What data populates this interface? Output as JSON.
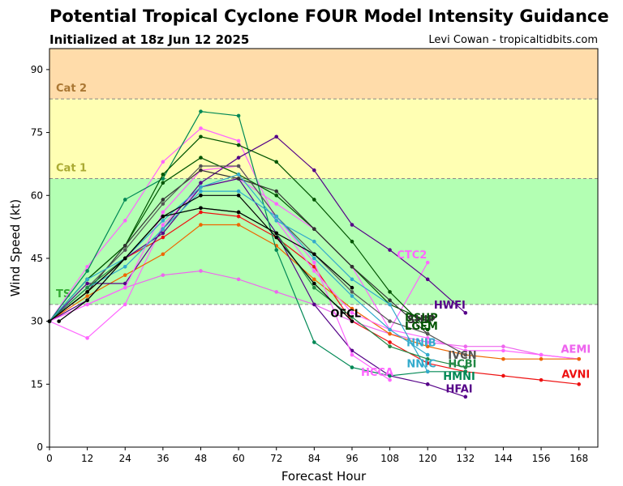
{
  "chart_data": {
    "type": "line",
    "title": "Potential Tropical Cyclone FOUR Model Intensity Guidance",
    "subtitle": "Initialized at 18z Jun 12 2025",
    "credit": "Levi Cowan - tropicaltidbits.com",
    "xlabel": "Forecast Hour",
    "ylabel": "Wind Speed (kt)",
    "xlim": [
      0,
      174
    ],
    "ylim": [
      0,
      95
    ],
    "xticks": [
      0,
      12,
      24,
      36,
      48,
      60,
      72,
      84,
      96,
      108,
      120,
      132,
      144,
      156,
      168
    ],
    "yticks": [
      0,
      15,
      30,
      45,
      60,
      75,
      90
    ],
    "bands": [
      {
        "label": "",
        "from": 0,
        "to": 34,
        "color": "#ffffff"
      },
      {
        "label": "TS",
        "from": 34,
        "to": 64,
        "color": "#b3ffb3",
        "label_color": "#33aa33"
      },
      {
        "label": "Cat 1",
        "from": 64,
        "to": 83,
        "color": "#ffffb3",
        "label_color": "#aaaa33"
      },
      {
        "label": "Cat 2",
        "from": 83,
        "to": 95,
        "color": "#ffdcaa",
        "label_color": "#aa7733"
      }
    ],
    "series": [
      {
        "name": "AEMI",
        "color": "#ee66ee",
        "x": [
          0,
          12,
          24,
          36,
          48,
          60,
          72,
          84,
          96,
          108,
          120,
          132,
          144,
          156,
          168
        ],
        "y": [
          30,
          34,
          38,
          41,
          42,
          40,
          37,
          34,
          30,
          27,
          25,
          24,
          24,
          22,
          21
        ]
      },
      {
        "name": "AEMI",
        "color": "#ff66ff",
        "x": [
          0,
          12,
          24,
          36,
          48,
          60,
          72,
          84,
          96,
          108,
          120,
          132,
          144,
          156,
          168
        ],
        "y": [
          30,
          26,
          34,
          53,
          62,
          64,
          58,
          52,
          43,
          28,
          26,
          23,
          23,
          22,
          21
        ]
      },
      {
        "name": "AVNI",
        "color": "#ee1111",
        "x": [
          0,
          12,
          24,
          36,
          48,
          60,
          72,
          84,
          96,
          108,
          120,
          132,
          144,
          156,
          168
        ],
        "y": [
          30,
          37,
          45,
          50,
          56,
          55,
          50,
          43,
          30,
          25,
          20,
          18,
          17,
          16,
          15
        ]
      },
      {
        "name": "",
        "color": "#ee6600",
        "x": [
          0,
          12,
          24,
          36,
          48,
          60,
          72,
          84,
          96,
          108,
          120,
          132,
          144,
          156,
          168
        ],
        "y": [
          30,
          36,
          41,
          46,
          53,
          53,
          48,
          40,
          33,
          27,
          24,
          22,
          21,
          21,
          21
        ]
      },
      {
        "name": "CTC2",
        "color": "#ff66ff",
        "x": [
          0,
          12,
          24,
          36,
          48,
          60,
          72,
          84,
          96,
          108,
          120
        ],
        "y": [
          30,
          43,
          54,
          68,
          76,
          73,
          54,
          42,
          32,
          28,
          44
        ]
      },
      {
        "name": "HWFI",
        "color": "#550088",
        "x": [
          0,
          12,
          24,
          36,
          48,
          60,
          72,
          84,
          96,
          108,
          120,
          132
        ],
        "y": [
          30,
          39,
          39,
          52,
          63,
          69,
          74,
          66,
          53,
          47,
          40,
          32
        ]
      },
      {
        "name": "HFAI",
        "color": "#550088",
        "x": [
          0,
          12,
          24,
          36,
          48,
          60,
          72,
          84,
          96,
          108,
          120,
          132
        ],
        "y": [
          30,
          35,
          45,
          51,
          62,
          64,
          51,
          34,
          23,
          17,
          15,
          12
        ]
      },
      {
        "name": "HMNI",
        "color": "#008855",
        "x": [
          0,
          12,
          24,
          36,
          48,
          60,
          72,
          84,
          96,
          108,
          120,
          132
        ],
        "y": [
          30,
          42,
          59,
          64,
          80,
          79,
          47,
          25,
          19,
          17,
          18,
          18
        ]
      },
      {
        "name": "HCCA",
        "color": "#ff66ff",
        "x": [
          0,
          12,
          24,
          36,
          48,
          60,
          72,
          84,
          96,
          108
        ],
        "y": [
          30,
          34,
          38,
          56,
          66,
          67,
          55,
          44,
          22,
          16
        ]
      },
      {
        "name": "LGEM",
        "color": "#005500",
        "x": [
          0,
          12,
          24,
          36,
          48,
          60,
          72,
          84,
          96,
          108,
          120
        ],
        "y": [
          30,
          40,
          48,
          65,
          74,
          72,
          68,
          59,
          49,
          37,
          28
        ]
      },
      {
        "name": "DSHP",
        "color": "#005500",
        "x": [
          0,
          12,
          24,
          36,
          48,
          60,
          72,
          84,
          96,
          108,
          120
        ],
        "y": [
          30,
          40,
          48,
          63,
          69,
          65,
          60,
          52,
          43,
          34,
          30
        ]
      },
      {
        "name": "SHIP",
        "color": "#333333",
        "x": [
          0,
          12,
          24,
          36,
          48,
          60,
          72,
          84,
          96,
          108,
          120
        ],
        "y": [
          30,
          37,
          48,
          59,
          66,
          64,
          61,
          52,
          43,
          35,
          27
        ]
      },
      {
        "name": "IVCN",
        "color": "#555555",
        "x": [
          0,
          12,
          24,
          36,
          48,
          60,
          72,
          84,
          96,
          108,
          120,
          132
        ],
        "y": [
          30,
          38,
          47,
          58,
          67,
          67,
          55,
          46,
          37,
          30,
          27,
          22
        ]
      },
      {
        "name": "NNIB",
        "color": "#33aacc",
        "x": [
          0,
          12,
          24,
          36,
          48,
          60,
          72,
          84,
          96,
          108,
          120
        ],
        "y": [
          30,
          40,
          45,
          54,
          62,
          65,
          54,
          49,
          40,
          34,
          18
        ]
      },
      {
        "name": "NNIC",
        "color": "#33aacc",
        "x": [
          0,
          12,
          24,
          36,
          48,
          60,
          72,
          84,
          96,
          108,
          120
        ],
        "y": [
          30,
          38,
          43,
          52,
          61,
          61,
          55,
          45,
          36,
          28,
          22
        ]
      },
      {
        "name": "HCBI",
        "color": "#228844",
        "x": [
          0,
          12,
          24,
          36,
          48,
          60,
          72,
          84,
          96,
          108,
          120,
          132
        ],
        "y": [
          30,
          38,
          45,
          55,
          57,
          56,
          51,
          38,
          31,
          24,
          21,
          19
        ]
      },
      {
        "name": "OFCL",
        "color": "#000000",
        "x": [
          3,
          12,
          24,
          36,
          48,
          60,
          72,
          84,
          96
        ],
        "y": [
          30,
          35,
          45,
          55,
          60,
          60,
          50,
          39,
          30
        ]
      },
      {
        "name": "",
        "color": "#000000",
        "x": [
          0,
          12,
          24,
          36,
          48,
          60,
          72,
          84,
          96
        ],
        "y": [
          30,
          37,
          45,
          55,
          57,
          56,
          51,
          46,
          38
        ]
      }
    ],
    "labels": [
      {
        "text": "HWFI",
        "color": "#550088",
        "x": 127,
        "y": 34
      },
      {
        "text": "CTC2",
        "color": "#ff66ff",
        "x": 115,
        "y": 46
      },
      {
        "text": "OFCL",
        "color": "#000000",
        "x": 94,
        "y": 32
      },
      {
        "text": "DSHP",
        "color": "#005500",
        "x": 118,
        "y": 31
      },
      {
        "text": "SHIP",
        "color": "#333333",
        "x": 118,
        "y": 30.5
      },
      {
        "text": "LGEM",
        "color": "#005500",
        "x": 118,
        "y": 29
      },
      {
        "text": "NNIB",
        "color": "#33aacc",
        "x": 118,
        "y": 25
      },
      {
        "text": "IVCN",
        "color": "#555555",
        "x": 131,
        "y": 22
      },
      {
        "text": "NNIC",
        "color": "#33aacc",
        "x": 118,
        "y": 20
      },
      {
        "text": "HCBI",
        "color": "#228844",
        "x": 131,
        "y": 20
      },
      {
        "text": "HCCA",
        "color": "#ff66ff",
        "x": 104,
        "y": 18
      },
      {
        "text": "HMNI",
        "color": "#008855",
        "x": 130,
        "y": 17
      },
      {
        "text": "HFAI",
        "color": "#550088",
        "x": 130,
        "y": 14
      },
      {
        "text": "AEMI",
        "color": "#ff66ff",
        "x": 167,
        "y": 23.5
      },
      {
        "text": "AEMI",
        "color": "#ee66ee",
        "x": 167,
        "y": 23.5
      },
      {
        "text": "AVNI",
        "color": "#ee1111",
        "x": 167,
        "y": 17.5
      }
    ]
  }
}
